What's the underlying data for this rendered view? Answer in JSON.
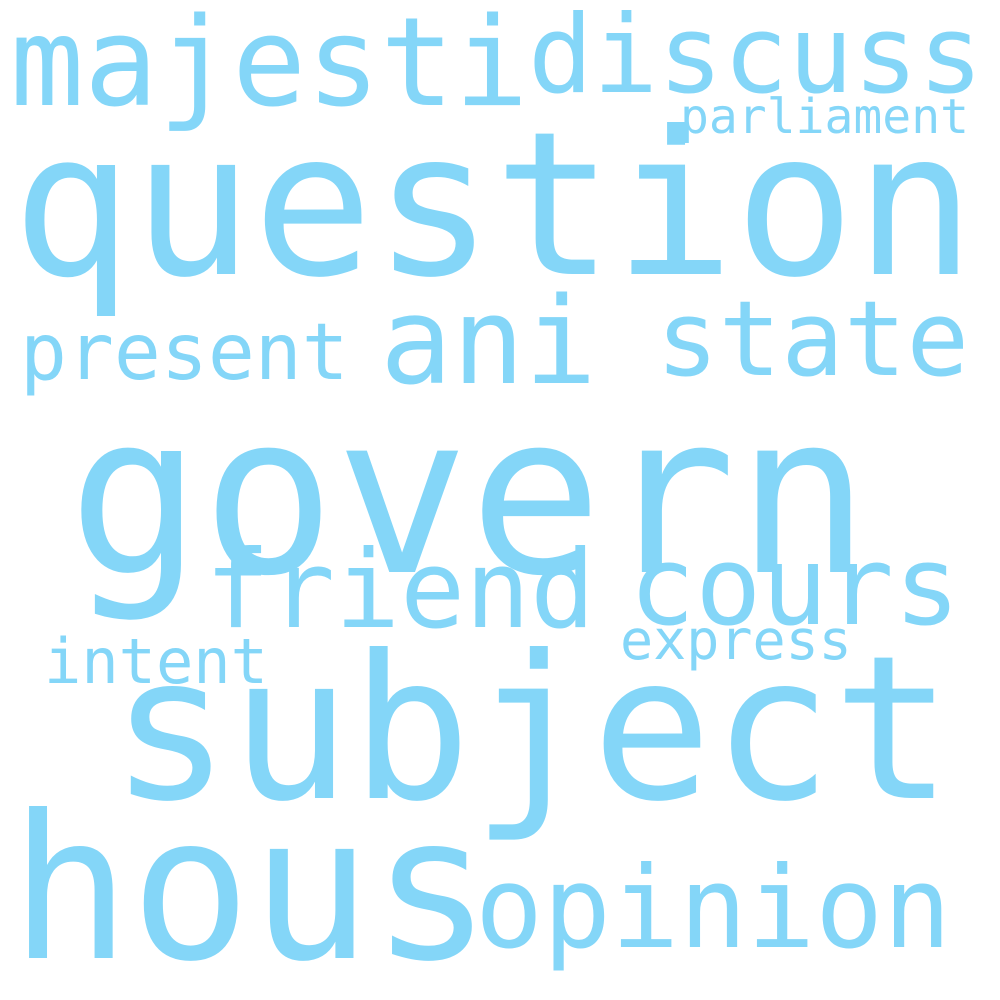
{
  "word_color": "#84d6f8",
  "background": "#ffffff",
  "words": {
    "majesti": "majesti",
    "discuss": "discuss",
    "parliament": "parliament",
    "question": "question",
    "present": "present",
    "ani": "ani",
    "state": "state",
    "govern": "govern",
    "friend": "friend",
    "cours": "cours",
    "express": "express",
    "intent": "intent",
    "subject": "subject",
    "hous": "hous",
    "opinion": "opinion"
  }
}
